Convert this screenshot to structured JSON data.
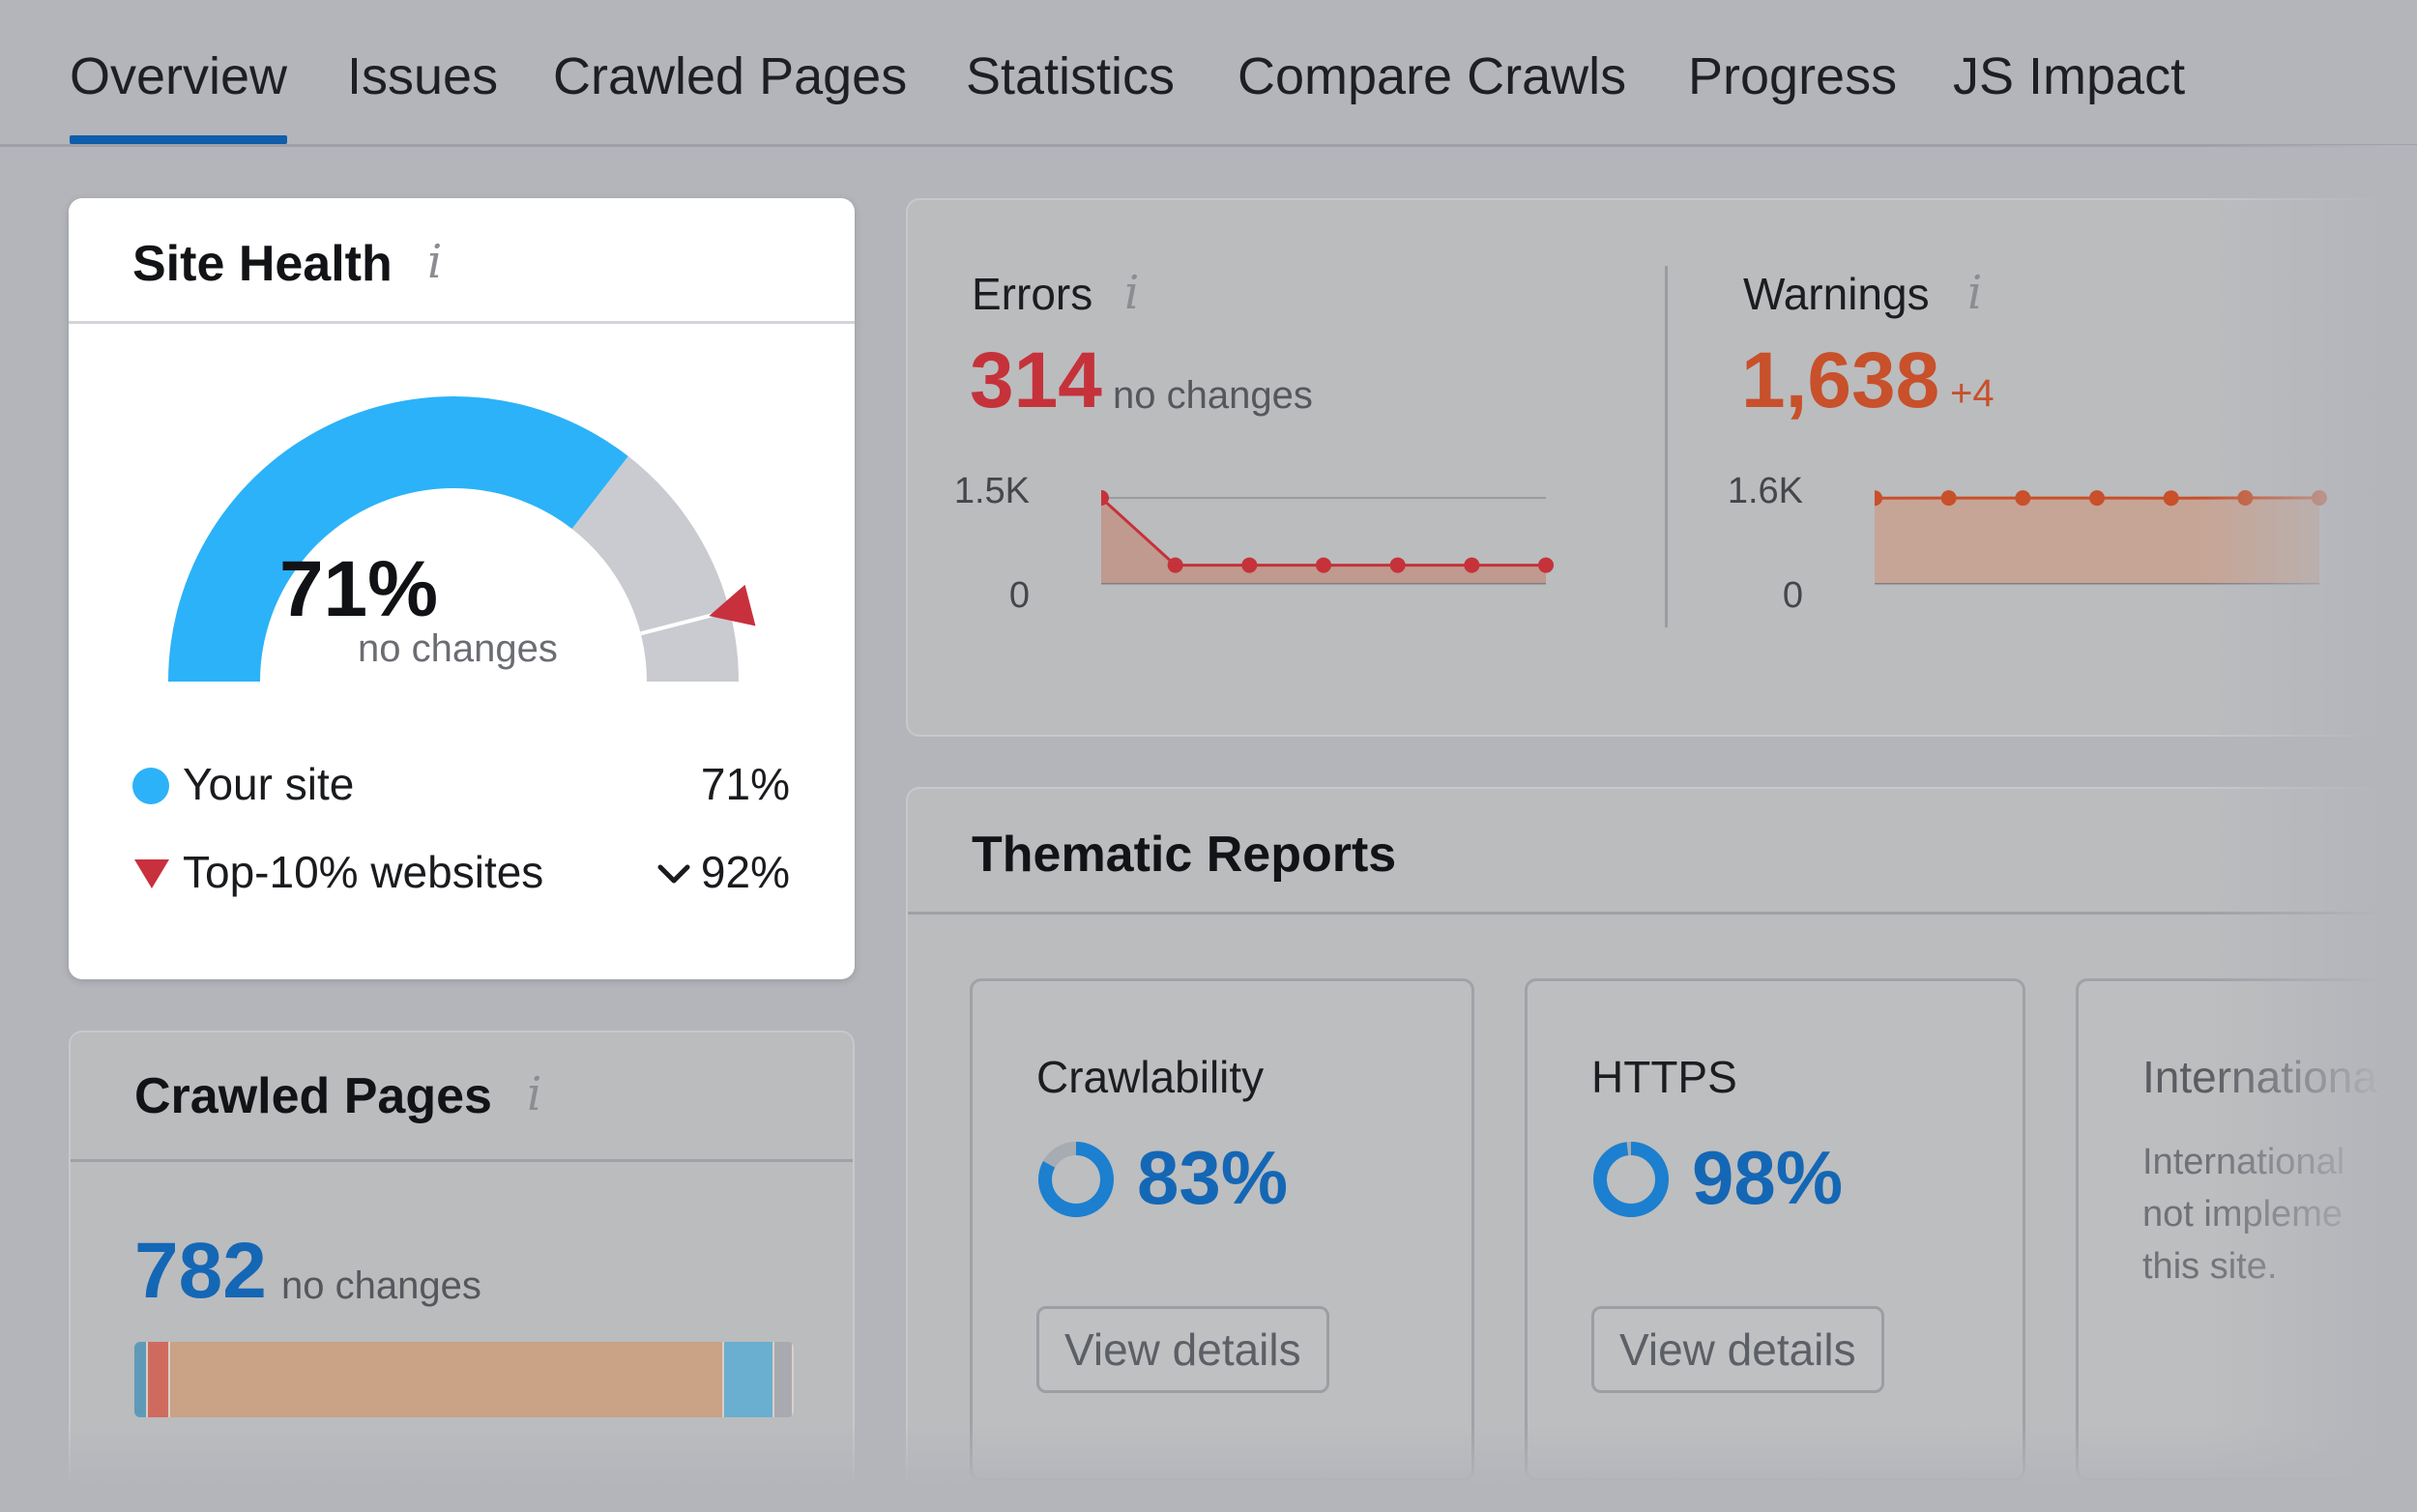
{
  "tabs": [
    {
      "label": "Overview",
      "active": true
    },
    {
      "label": "Issues"
    },
    {
      "label": "Crawled Pages"
    },
    {
      "label": "Statistics"
    },
    {
      "label": "Compare Crawls"
    },
    {
      "label": "Progress"
    },
    {
      "label": "JS Impact"
    }
  ],
  "info_glyph": "i",
  "site_health": {
    "title": "Site Health",
    "value": "71%",
    "status": "no changes",
    "score_fraction": 0.71,
    "top10_fraction": 0.92,
    "legend": [
      {
        "label": "Your site",
        "value": "71%",
        "color": "#2cb2f8"
      },
      {
        "label": "Top-10% websites",
        "value": "92%",
        "color": "#c8303d",
        "dropdown": "chevron-down-icon"
      }
    ]
  },
  "errors": {
    "label": "Errors",
    "value": "314",
    "status": "no changes",
    "color": "#c5323a",
    "axis": {
      "max_label": "1.5K",
      "min_label": "0"
    },
    "trend": [
      1500,
      314,
      314,
      314,
      314,
      314,
      314
    ]
  },
  "warnings": {
    "label": "Warnings",
    "value": "1,638",
    "delta": "+4",
    "color": "#c8502a",
    "axis": {
      "max_label": "1.6K",
      "min_label": "0"
    },
    "trend": [
      1634,
      1636,
      1636,
      1636,
      1634,
      1638,
      1638
    ]
  },
  "thematic": {
    "title": "Thematic Reports",
    "reports": [
      {
        "name": "Crawlability",
        "value": "83%",
        "fraction": 0.83,
        "button": "View details"
      },
      {
        "name": "HTTPS",
        "value": "98%",
        "fraction": 0.98,
        "button": "View details"
      },
      {
        "name": "Internationa",
        "desc": [
          "International",
          "not impleme",
          "this site."
        ]
      }
    ]
  },
  "crawled_pages": {
    "title": "Crawled Pages",
    "value": "782",
    "status": "no changes",
    "bar_segments": [
      {
        "fraction": 0.02,
        "color": "#5e9ab8"
      },
      {
        "fraction": 0.035,
        "color": "#cf6b5e"
      },
      {
        "fraction": 0.84,
        "color": "#caa286"
      },
      {
        "fraction": 0.075,
        "color": "#6aaed0"
      },
      {
        "fraction": 0.03,
        "color": "#a9aab0"
      }
    ]
  }
}
